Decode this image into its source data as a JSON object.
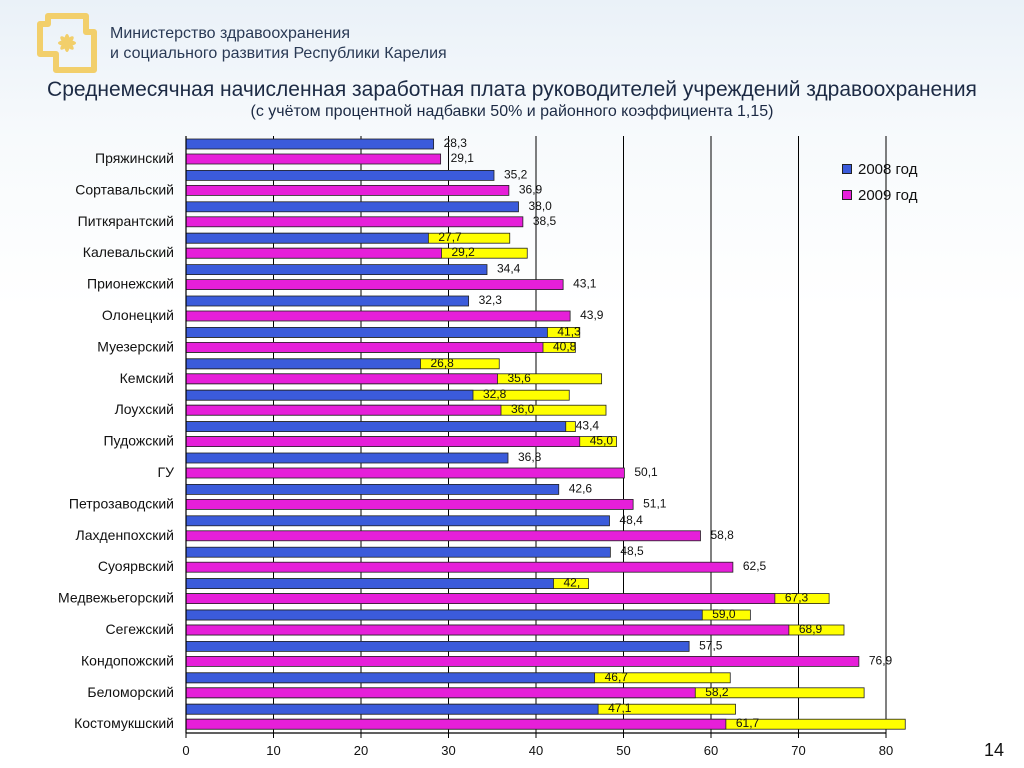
{
  "header": {
    "ministry_line1": "Министерство здравоохранения",
    "ministry_line2": "и социального развития Республики Карелия"
  },
  "page_number": "14",
  "colors": {
    "series_2008": "#3b5bdb",
    "series_2009": "#e61fd9",
    "highlight": "#ffff00",
    "logo": "#f2cf6b"
  },
  "chart_data": {
    "type": "bar",
    "orientation": "horizontal",
    "title": "Среднемесячная начисленная заработная плата руководителей учреждений здравоохранения",
    "subtitle": "(с учётом процентной надбавки 50% и районного коэффициента 1,15)",
    "xlim": [
      0,
      80
    ],
    "xticks": [
      0,
      10,
      20,
      30,
      40,
      50,
      60,
      70,
      80
    ],
    "grid": "vertical",
    "legend_position": "top-right",
    "series": [
      {
        "name": "2008 год",
        "color": "#3b5bdb"
      },
      {
        "name": "2009 год",
        "color": "#e61fd9"
      }
    ],
    "bars": [
      {
        "category": "Пряжинский",
        "v2008": 28.3,
        "l2008": "28,3",
        "v2009": 29.1,
        "l2009": "29,1"
      },
      {
        "category": "Сортавальский",
        "v2008": 35.2,
        "l2008": "35,2",
        "v2009": 36.9,
        "l2009": "36,9"
      },
      {
        "category": "Питкярантский",
        "v2008": 38.0,
        "l2008": "38,0",
        "v2009": 38.5,
        "l2009": "38,5"
      },
      {
        "category": "Калевальский",
        "v2008": 27.7,
        "l2008": "27,7",
        "v2009": 29.2,
        "l2009": "29,2"
      },
      {
        "category": "Прионежский",
        "v2008": 34.4,
        "l2008": "34,4",
        "v2009": 43.1,
        "l2009": "43,1"
      },
      {
        "category": "Олонецкий",
        "v2008": 32.3,
        "l2008": "32,3",
        "v2009": 43.9,
        "l2009": "43,9"
      },
      {
        "category": "Муезерский",
        "v2008": 41.3,
        "l2008": "41,3",
        "v2009": 40.8,
        "l2009": "40,8"
      },
      {
        "category": "Кемский",
        "v2008": 26.8,
        "l2008": "26,8",
        "v2009": 35.6,
        "l2009": "35,6"
      },
      {
        "category": "Лоухский",
        "v2008": 32.8,
        "l2008": "32,8",
        "v2009": 36.0,
        "l2009": "36,0"
      },
      {
        "category": "Пудожский",
        "v2008": 43.4,
        "l2008": "43,4",
        "v2009": 45.0,
        "l2009": "45,0"
      },
      {
        "category": "ГУ",
        "v2008": 36.8,
        "l2008": "36,8",
        "v2009": 50.1,
        "l2009": "50,1"
      },
      {
        "category": "Петрозаводский",
        "v2008": 42.6,
        "l2008": "42,6",
        "v2009": 51.1,
        "l2009": "51,1"
      },
      {
        "category": "Лахденпохский",
        "v2008": 48.4,
        "l2008": "48,4",
        "v2009": 58.8,
        "l2009": "58,8"
      },
      {
        "category": "Суоярвский",
        "v2008": 48.5,
        "l2008": "48,5",
        "v2009": 62.5,
        "l2009": "62,5"
      },
      {
        "category": "Медвежьегорский",
        "v2008": 42.0,
        "l2008": "42,",
        "v2009": 67.3,
        "l2009": "67,3"
      },
      {
        "category": "Сегежский",
        "v2008": 59.0,
        "l2008": "59,0",
        "v2009": 68.9,
        "l2009": "68,9"
      },
      {
        "category": "Кондопожский",
        "v2008": 57.5,
        "l2008": "57,5",
        "v2009": 76.9,
        "l2009": "76,9"
      },
      {
        "category": "Беломорский",
        "v2008": 46.7,
        "l2008": "46,7",
        "v2009": 58.2,
        "l2009": "58,2"
      },
      {
        "category": "Костомукшский",
        "v2008": 47.1,
        "l2008": "47,1",
        "v2009": 61.7,
        "l2009": "61,7"
      }
    ],
    "highlight_extents": [
      {
        "bar": 3,
        "series": "2008",
        "to": 37.0
      },
      {
        "bar": 3,
        "series": "2009",
        "to": 39.0
      },
      {
        "bar": 6,
        "series": "2008",
        "to": 45.0
      },
      {
        "bar": 6,
        "series": "2009",
        "to": 44.5
      },
      {
        "bar": 7,
        "series": "2008",
        "to": 35.8
      },
      {
        "bar": 7,
        "series": "2009",
        "to": 47.5
      },
      {
        "bar": 8,
        "series": "2008",
        "to": 43.8
      },
      {
        "bar": 8,
        "series": "2009",
        "to": 48.0
      },
      {
        "bar": 9,
        "series": "2008",
        "to": 44.5
      },
      {
        "bar": 9,
        "series": "2009",
        "to": 49.2
      },
      {
        "bar": 14,
        "series": "2008",
        "to": 46.0
      },
      {
        "bar": 14,
        "series": "2009",
        "to": 73.5
      },
      {
        "bar": 15,
        "series": "2008",
        "to": 64.5
      },
      {
        "bar": 15,
        "series": "2009",
        "to": 75.2
      },
      {
        "bar": 17,
        "series": "2008",
        "to": 62.2
      },
      {
        "bar": 17,
        "series": "2009",
        "to": 77.5
      },
      {
        "bar": 18,
        "series": "2008",
        "to": 62.8
      },
      {
        "bar": 18,
        "series": "2009",
        "to": 82.2
      }
    ]
  }
}
